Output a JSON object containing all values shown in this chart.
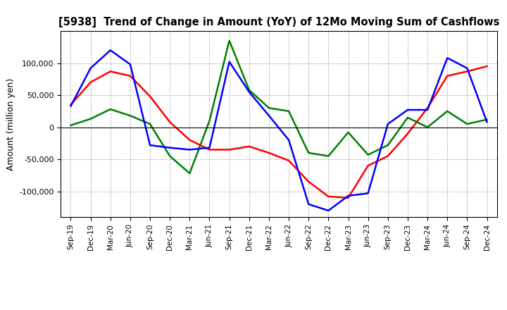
{
  "title": "[5938]  Trend of Change in Amount (YoY) of 12Mo Moving Sum of Cashflows",
  "ylabel": "Amount (million yen)",
  "x_labels": [
    "Sep-19",
    "Dec-19",
    "Mar-20",
    "Jun-20",
    "Sep-20",
    "Dec-20",
    "Mar-21",
    "Jun-21",
    "Sep-21",
    "Dec-21",
    "Mar-22",
    "Jun-22",
    "Sep-22",
    "Dec-22",
    "Mar-23",
    "Jun-23",
    "Sep-23",
    "Dec-23",
    "Mar-24",
    "Jun-24",
    "Sep-24",
    "Dec-24"
  ],
  "operating": [
    35000,
    70000,
    87000,
    80000,
    48000,
    8000,
    -20000,
    -35000,
    -35000,
    -30000,
    -40000,
    -52000,
    -85000,
    -108000,
    -110000,
    -60000,
    -45000,
    -10000,
    30000,
    80000,
    87000,
    95000
  ],
  "investing": [
    3000,
    13000,
    28000,
    18000,
    5000,
    -45000,
    -72000,
    10000,
    135000,
    58000,
    30000,
    25000,
    -40000,
    -45000,
    -8000,
    -43000,
    -28000,
    15000,
    0,
    25000,
    5000,
    12000
  ],
  "free": [
    33000,
    92000,
    120000,
    98000,
    -28000,
    -32000,
    -35000,
    -32000,
    102000,
    55000,
    18000,
    -20000,
    -120000,
    -130000,
    -107000,
    -103000,
    5000,
    27000,
    27000,
    108000,
    92000,
    8000
  ],
  "ylim": [
    -140000,
    150000
  ],
  "yticks": [
    -100000,
    -50000,
    0,
    50000,
    100000
  ],
  "colors": {
    "operating": "#ff0000",
    "investing": "#008000",
    "free": "#0000ff"
  },
  "background_color": "#ffffff",
  "grid_color": "#888888"
}
